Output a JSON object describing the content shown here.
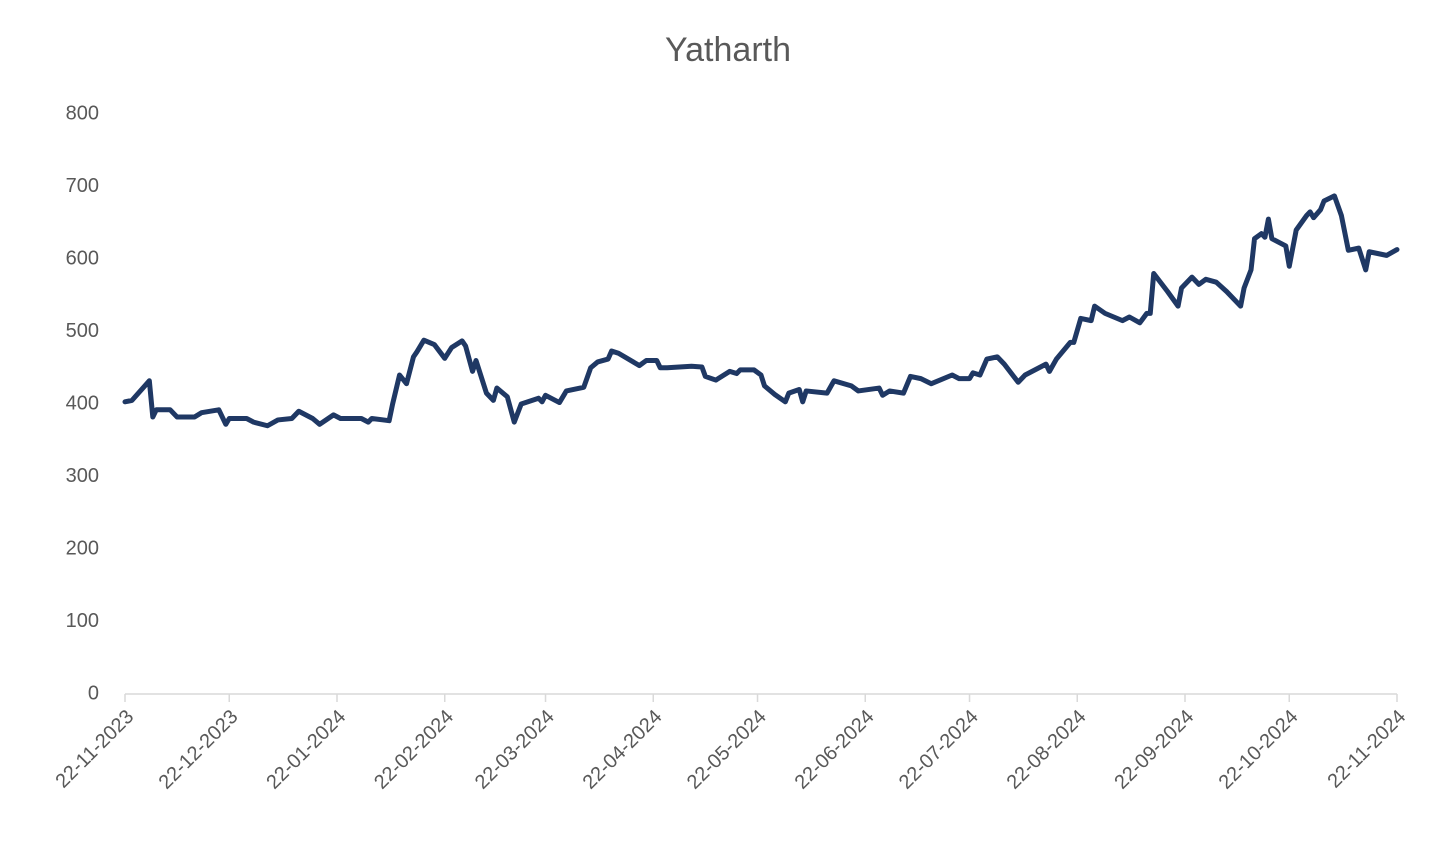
{
  "chart_data": {
    "type": "line",
    "title": "Yatharth",
    "x": [
      "2023-11-22",
      "2023-11-24",
      "2023-11-29",
      "2023-11-30",
      "2023-12-01",
      "2023-12-05",
      "2023-12-07",
      "2023-12-12",
      "2023-12-14",
      "2023-12-19",
      "2023-12-21",
      "2023-12-22",
      "2023-12-27",
      "2023-12-29",
      "2024-01-02",
      "2024-01-05",
      "2024-01-09",
      "2024-01-11",
      "2024-01-15",
      "2024-01-17",
      "2024-01-21",
      "2024-01-23",
      "2024-01-29",
      "2024-01-31",
      "2024-02-01",
      "2024-02-06",
      "2024-02-07",
      "2024-02-09",
      "2024-02-11",
      "2024-02-13",
      "2024-02-14",
      "2024-02-16",
      "2024-02-19",
      "2024-02-22",
      "2024-02-24",
      "2024-02-27",
      "2024-02-28",
      "2024-03-01",
      "2024-03-02",
      "2024-03-05",
      "2024-03-07",
      "2024-03-08",
      "2024-03-11",
      "2024-03-13",
      "2024-03-15",
      "2024-03-20",
      "2024-03-21",
      "2024-03-22",
      "2024-03-26",
      "2024-03-28",
      "2024-04-02",
      "2024-04-04",
      "2024-04-06",
      "2024-04-09",
      "2024-04-10",
      "2024-04-12",
      "2024-04-18",
      "2024-04-20",
      "2024-04-23",
      "2024-04-24",
      "2024-04-26",
      "2024-05-03",
      "2024-05-06",
      "2024-05-07",
      "2024-05-10",
      "2024-05-14",
      "2024-05-16",
      "2024-05-17",
      "2024-05-21",
      "2024-05-23",
      "2024-05-24",
      "2024-05-27",
      "2024-05-30",
      "2024-05-31",
      "2024-06-03",
      "2024-06-04",
      "2024-06-05",
      "2024-06-11",
      "2024-06-13",
      "2024-06-18",
      "2024-06-20",
      "2024-06-26",
      "2024-06-27",
      "2024-06-29",
      "2024-07-03",
      "2024-07-05",
      "2024-07-08",
      "2024-07-11",
      "2024-07-17",
      "2024-07-19",
      "2024-07-22",
      "2024-07-23",
      "2024-07-25",
      "2024-07-27",
      "2024-07-30",
      "2024-08-01",
      "2024-08-05",
      "2024-08-07",
      "2024-08-13",
      "2024-08-14",
      "2024-08-16",
      "2024-08-20",
      "2024-08-21",
      "2024-08-23",
      "2024-08-26",
      "2024-08-27",
      "2024-08-30",
      "2024-09-04",
      "2024-09-06",
      "2024-09-09",
      "2024-09-11",
      "2024-09-12",
      "2024-09-13",
      "2024-09-17",
      "2024-09-20",
      "2024-09-21",
      "2024-09-24",
      "2024-09-26",
      "2024-09-28",
      "2024-10-01",
      "2024-10-04",
      "2024-10-08",
      "2024-10-09",
      "2024-10-11",
      "2024-10-12",
      "2024-10-14",
      "2024-10-15",
      "2024-10-16",
      "2024-10-17",
      "2024-10-21",
      "2024-10-22",
      "2024-10-24",
      "2024-10-27",
      "2024-10-28",
      "2024-10-29",
      "2024-10-31",
      "2024-11-01",
      "2024-11-04",
      "2024-11-06",
      "2024-11-08",
      "2024-11-11",
      "2024-11-13",
      "2024-11-14",
      "2024-11-19",
      "2024-11-22"
    ],
    "series": [
      {
        "name": "Yatharth",
        "color": "#1f3864",
        "values": [
          403,
          405,
          432,
          382,
          392,
          392,
          382,
          382,
          388,
          392,
          372,
          380,
          380,
          375,
          370,
          378,
          380,
          390,
          380,
          372,
          385,
          380,
          380,
          375,
          380,
          377,
          400,
          440,
          428,
          465,
          472,
          488,
          482,
          463,
          478,
          487,
          480,
          445,
          460,
          415,
          405,
          422,
          410,
          375,
          400,
          408,
          403,
          412,
          402,
          418,
          423,
          450,
          458,
          462,
          473,
          470,
          453,
          460,
          460,
          450,
          450,
          452,
          451,
          438,
          433,
          445,
          442,
          447,
          447,
          440,
          425,
          413,
          403,
          415,
          420,
          403,
          418,
          415,
          432,
          425,
          418,
          422,
          412,
          418,
          415,
          438,
          435,
          428,
          440,
          435,
          435,
          443,
          440,
          462,
          465,
          455,
          430,
          440,
          455,
          445,
          462,
          485,
          485,
          518,
          515,
          535,
          525,
          515,
          520,
          512,
          525,
          525,
          580,
          555,
          535,
          560,
          575,
          565,
          572,
          568,
          555,
          535,
          560,
          585,
          628,
          635,
          630,
          655,
          628,
          618,
          590,
          640,
          660,
          665,
          657,
          668,
          680,
          687,
          660,
          612,
          615,
          585,
          610,
          605,
          613
        ]
      }
    ],
    "xlim": [
      "2023-11-22",
      "2024-11-22"
    ],
    "xticks": [
      {
        "value": "2023-11-22",
        "label": "22-11-2023"
      },
      {
        "value": "2023-12-22",
        "label": "22-12-2023"
      },
      {
        "value": "2024-01-22",
        "label": "22-01-2024"
      },
      {
        "value": "2024-02-22",
        "label": "22-02-2024"
      },
      {
        "value": "2024-03-22",
        "label": "22-03-2024"
      },
      {
        "value": "2024-04-22",
        "label": "22-04-2024"
      },
      {
        "value": "2024-05-22",
        "label": "22-05-2024"
      },
      {
        "value": "2024-06-22",
        "label": "22-06-2024"
      },
      {
        "value": "2024-07-22",
        "label": "22-07-2024"
      },
      {
        "value": "2024-08-22",
        "label": "22-08-2024"
      },
      {
        "value": "2024-09-22",
        "label": "22-09-2024"
      },
      {
        "value": "2024-10-22",
        "label": "22-10-2024"
      },
      {
        "value": "2024-11-22",
        "label": "22-11-2024"
      }
    ],
    "ylim": [
      0,
      800
    ],
    "yticks": [
      0,
      100,
      200,
      300,
      400,
      500,
      600,
      700,
      800
    ],
    "grid": false
  }
}
